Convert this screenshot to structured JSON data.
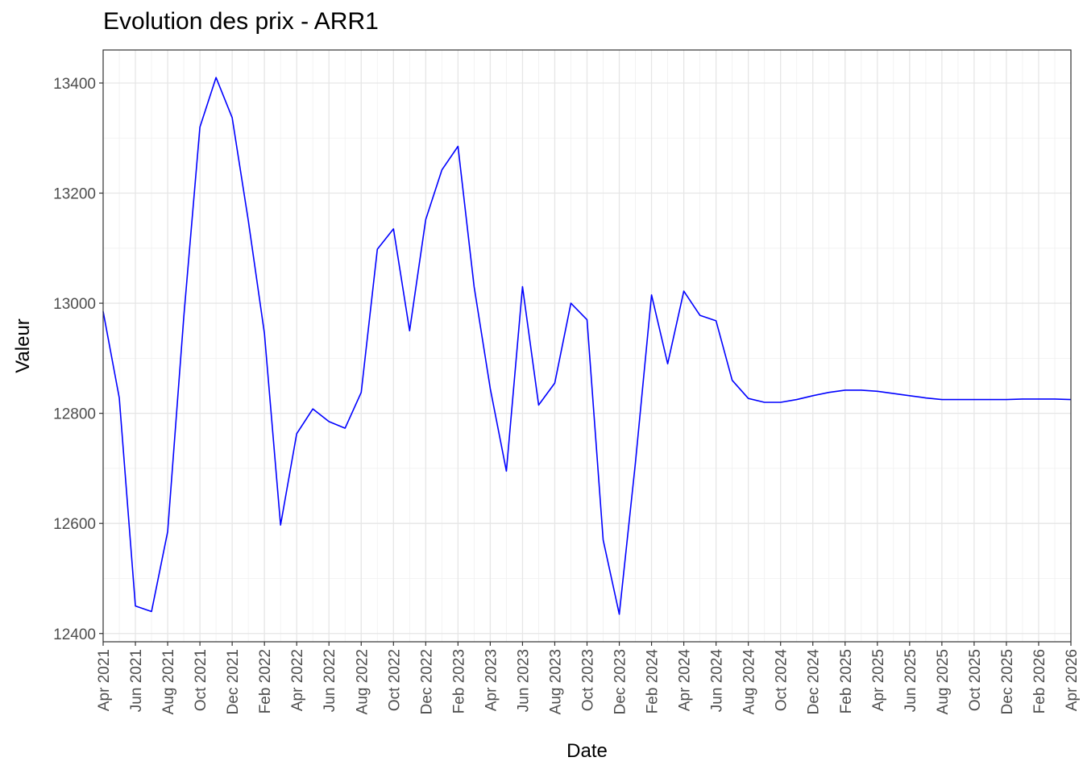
{
  "chart_data": {
    "type": "line",
    "title": "Evolution des prix - ARR1",
    "xlabel": "Date",
    "ylabel": "Valeur",
    "x_tick_labels": [
      "Apr 2021",
      "Jun 2021",
      "Aug 2021",
      "Oct 2021",
      "Dec 2021",
      "Feb 2022",
      "Apr 2022",
      "Jun 2022",
      "Aug 2022",
      "Oct 2022",
      "Dec 2022",
      "Feb 2023",
      "Apr 2023",
      "Jun 2023",
      "Aug 2023",
      "Oct 2023",
      "Dec 2023",
      "Feb 2024",
      "Apr 2024",
      "Jun 2024",
      "Aug 2024",
      "Oct 2024",
      "Dec 2024",
      "Feb 2025",
      "Apr 2025",
      "Jun 2025",
      "Aug 2025",
      "Oct 2025",
      "Dec 2025",
      "Feb 2026",
      "Apr 2026"
    ],
    "y_ticks": [
      12400,
      12600,
      12800,
      13000,
      13200,
      13400
    ],
    "xlim": [
      "2021-04",
      "2026-04"
    ],
    "ylim": [
      12385,
      13460
    ],
    "grid": true,
    "line_color": "#0000ff",
    "series": [
      {
        "x": [
          "2021-04",
          "2021-05",
          "2021-06",
          "2021-07",
          "2021-08",
          "2021-09",
          "2021-10",
          "2021-11",
          "2021-12",
          "2022-01",
          "2022-02",
          "2022-03",
          "2022-04",
          "2022-05",
          "2022-06",
          "2022-07",
          "2022-08",
          "2022-09",
          "2022-10",
          "2022-11",
          "2022-12",
          "2023-01",
          "2023-02",
          "2023-03",
          "2023-04",
          "2023-05",
          "2023-06",
          "2023-07",
          "2023-08",
          "2023-09",
          "2023-10",
          "2023-11",
          "2023-12",
          "2024-01",
          "2024-02",
          "2024-03",
          "2024-04",
          "2024-05",
          "2024-06",
          "2024-07",
          "2024-08",
          "2024-09",
          "2024-10",
          "2024-11",
          "2024-12",
          "2025-01",
          "2025-02",
          "2025-03",
          "2025-04",
          "2025-05",
          "2025-06",
          "2025-07",
          "2025-08",
          "2025-09",
          "2025-10",
          "2025-11",
          "2025-12",
          "2026-01",
          "2026-02",
          "2026-03",
          "2026-04"
        ],
        "values": [
          12985,
          12828,
          12450,
          12440,
          12585,
          12975,
          13320,
          13410,
          13337,
          13150,
          12945,
          12597,
          12763,
          12808,
          12785,
          12773,
          12838,
          13098,
          13135,
          12950,
          13152,
          13242,
          13285,
          13030,
          12845,
          12695,
          13030,
          12815,
          12855,
          13000,
          12970,
          12570,
          12435,
          12710,
          13015,
          12890,
          13022,
          12978,
          12968,
          12860,
          12827,
          12820,
          12820,
          12825,
          12832,
          12838,
          12842,
          12842,
          12840,
          12836,
          12832,
          12828,
          12825,
          12825,
          12825,
          12825,
          12825,
          12826,
          12826,
          12826,
          12825
        ]
      }
    ]
  }
}
